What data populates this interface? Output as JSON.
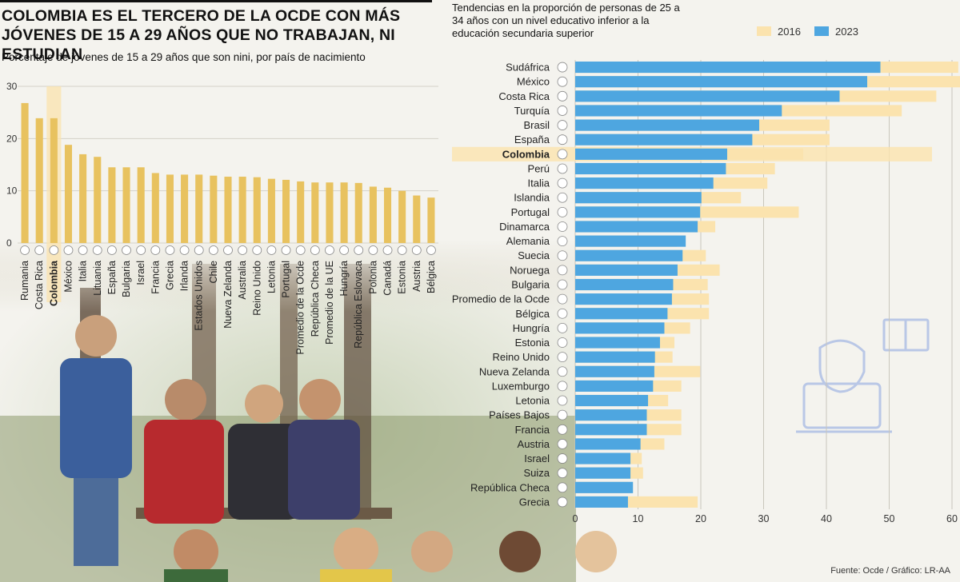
{
  "headline": "COLOMBIA ES EL TERCERO DE LA OCDE CON MÁS JÓVENES DE 15 A 29 AÑOS QUE NO TRABAJAN, NI ESTUDIAN",
  "left_subtitle": "Porcentaje de jóvenes de 15 a 29 años que son nini, por país de nacimiento",
  "right_subtitle": "Tendencias en la proporción de personas de 25 a 34 años con un nivel educativo inferior a la educación secundaria superior",
  "legend": {
    "label_2016": "2016",
    "label_2023": "2023"
  },
  "colors": {
    "left_bar": "#e8c25f",
    "bar_2016": "#fbe3ae",
    "bar_2023": "#4ea6e0",
    "highlight": "#fbe3ae"
  },
  "source": "Fuente: Ocde / Gráfico: LR-AA",
  "chart_data": [
    {
      "type": "bar",
      "title": "Porcentaje de jóvenes de 15 a 29 años que son nini, por país de nacimiento",
      "highlight": "Colombia",
      "ylim": [
        0,
        30
      ],
      "yticks": [
        0,
        10,
        20,
        30
      ],
      "grid": true,
      "categories": [
        "Rumania",
        "Costa Rica",
        "Colombia",
        "México",
        "Italia",
        "Lituania",
        "España",
        "Bulgaria",
        "Israel",
        "Francia",
        "Grecia",
        "Irlanda",
        "Estados Unidos",
        "Chile",
        "Nueva Zelanda",
        "Australia",
        "Reino Unido",
        "Letonia",
        "Portugal",
        "Promedio de la Ocde",
        "República Checa",
        "Promedio de la UE",
        "Hungría",
        "República Eslovaca",
        "Polonia",
        "Canadá",
        "Estonia",
        "Austria",
        "Bélgica"
      ],
      "values": [
        26.8,
        23.9,
        23.9,
        18.8,
        17.0,
        16.5,
        14.5,
        14.5,
        14.5,
        13.4,
        13.1,
        13.1,
        13.1,
        12.9,
        12.7,
        12.7,
        12.6,
        12.3,
        12.1,
        11.8,
        11.6,
        11.6,
        11.6,
        11.5,
        10.8,
        10.6,
        10.0,
        9.1,
        8.7
      ]
    },
    {
      "type": "bar",
      "orientation": "horizontal",
      "title": "Tendencias en la proporción de personas de 25 a 34 años con un nivel educativo inferior a la educación secundaria superior",
      "highlight": "Colombia",
      "xlim": [
        0,
        60
      ],
      "xticks": [
        0,
        10,
        20,
        30,
        40,
        50,
        60
      ],
      "grid": true,
      "legend_position": "top-right",
      "categories": [
        "Sudáfrica",
        "México",
        "Costa Rica",
        "Turquía",
        "Brasil",
        "España",
        "Colombia",
        "Perú",
        "Italia",
        "Islandia",
        "Portugal",
        "Dinamarca",
        "Alemania",
        "Suecia",
        "Noruega",
        "Bulgaria",
        "Promedio de la Ocde",
        "Bélgica",
        "Hungría",
        "Estonia",
        "Reino Unido",
        "Nueva Zelanda",
        "Luxemburgo",
        "Letonia",
        "Países Bajos",
        "Francia",
        "Austria",
        "Israel",
        "Suiza",
        "República Checa",
        "Grecia"
      ],
      "series": [
        {
          "name": "2016",
          "values": [
            61.0,
            62.0,
            57.5,
            52.0,
            40.5,
            40.5,
            36.3,
            31.8,
            30.6,
            26.4,
            35.6,
            22.3,
            16.2,
            20.8,
            23.0,
            21.1,
            21.3,
            21.3,
            18.3,
            15.8,
            15.5,
            19.9,
            16.9,
            14.8,
            16.9,
            16.9,
            14.2,
            10.6,
            10.8,
            8.4,
            19.5
          ]
        },
        {
          "name": "2023",
          "values": [
            48.6,
            46.5,
            42.1,
            32.9,
            29.3,
            28.2,
            24.2,
            24.0,
            22.0,
            20.1,
            19.9,
            19.5,
            17.6,
            17.1,
            16.3,
            15.6,
            15.4,
            14.7,
            14.2,
            13.5,
            12.7,
            12.6,
            12.4,
            11.6,
            11.4,
            11.4,
            10.4,
            8.8,
            8.8,
            9.2,
            8.4
          ]
        }
      ]
    }
  ]
}
